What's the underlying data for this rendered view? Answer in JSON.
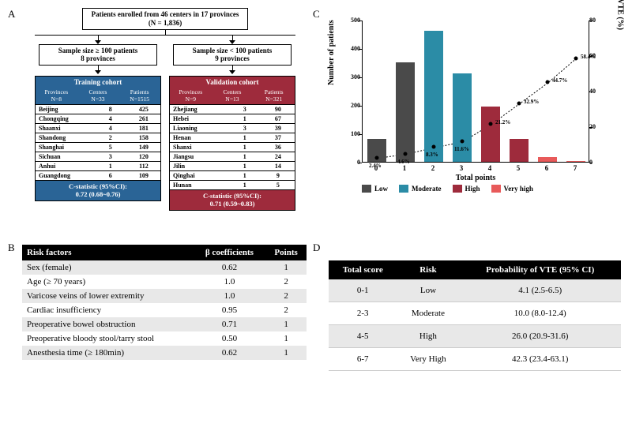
{
  "labels": {
    "A": "A",
    "B": "B",
    "C": "C",
    "D": "D"
  },
  "A": {
    "root": "Patients enrolled from 46 centers in 17 provinces (N = 1,836)",
    "left_cond": "Sample size ≥ 100 patients\n8 provinces",
    "right_cond": "Sample size < 100 patients\n9 provinces",
    "training": {
      "title": "Training cohort",
      "sub": {
        "prov_lab": "Provinces",
        "prov_n": "N=8",
        "cent_lab": "Centers",
        "cent_n": "N=33",
        "pat_lab": "Patients",
        "pat_n": "N=1515"
      },
      "rows": [
        [
          "Beijing",
          "8",
          "425"
        ],
        [
          "Chongqing",
          "4",
          "261"
        ],
        [
          "Shaanxi",
          "4",
          "181"
        ],
        [
          "Shandong",
          "2",
          "158"
        ],
        [
          "Shanghai",
          "5",
          "149"
        ],
        [
          "Sichuan",
          "3",
          "120"
        ],
        [
          "Anhui",
          "1",
          "112"
        ],
        [
          "Guangdong",
          "6",
          "109"
        ]
      ],
      "cstat_lab": "C-statistic (95%CI):",
      "cstat_val": "0.72 (0.68~0.76)",
      "color": "#2a6496"
    },
    "validation": {
      "title": "Validation cohort",
      "sub": {
        "prov_lab": "Provinces",
        "prov_n": "N=9",
        "cent_lab": "Centers",
        "cent_n": "N=13",
        "pat_lab": "Patients",
        "pat_n": "N=321"
      },
      "rows": [
        [
          "Zhejiang",
          "3",
          "90"
        ],
        [
          "Hebei",
          "1",
          "67"
        ],
        [
          "Liaoning",
          "3",
          "39"
        ],
        [
          "Henan",
          "1",
          "37"
        ],
        [
          "Shanxi",
          "1",
          "36"
        ],
        [
          "Jiangsu",
          "1",
          "24"
        ],
        [
          "Jilin",
          "1",
          "14"
        ],
        [
          "Qinghai",
          "1",
          "9"
        ],
        [
          "Hunan",
          "1",
          "5"
        ]
      ],
      "cstat_lab": "C-statistic (95%CI):",
      "cstat_val": "0.71 (0.59~0.83)",
      "color": "#9e2b3c"
    }
  },
  "B": {
    "headers": [
      "Risk factors",
      "β coefficients",
      "Points"
    ],
    "rows": [
      [
        "Sex (female)",
        "0.62",
        "1"
      ],
      [
        "Age (≥ 70 years)",
        "1.0",
        "2"
      ],
      [
        "Varicose veins of lower extremity",
        "1.0",
        "2"
      ],
      [
        "Cardiac insufficiency",
        "0.95",
        "2"
      ],
      [
        "Preoperative bowel obstruction",
        "0.71",
        "1"
      ],
      [
        "Preoperative bloody stool/tarry stool",
        "0.50",
        "1"
      ],
      [
        "Anesthesia time (≥ 180min)",
        "0.62",
        "1"
      ]
    ]
  },
  "C": {
    "type": "bar+line",
    "x_label": "Total points",
    "y_label_left": "Number of patients",
    "y_label_right": "Risk of VTE (%)",
    "x_categories": [
      "0",
      "1",
      "2",
      "3",
      "4",
      "5",
      "6",
      "7"
    ],
    "y_left_max": 500,
    "y_left_ticks": [
      0,
      100,
      200,
      300,
      400,
      500
    ],
    "y_right_max": 80,
    "y_right_ticks": [
      0,
      20,
      40,
      60,
      80
    ],
    "bars": [
      {
        "x": "0",
        "count": 80,
        "group": "Low"
      },
      {
        "x": "1",
        "count": 350,
        "group": "Low"
      },
      {
        "x": "2",
        "count": 460,
        "group": "Moderate"
      },
      {
        "x": "3",
        "count": 310,
        "group": "Moderate"
      },
      {
        "x": "4",
        "count": 195,
        "group": "High"
      },
      {
        "x": "5",
        "count": 80,
        "group": "High"
      },
      {
        "x": "6",
        "count": 18,
        "group": "Very high"
      },
      {
        "x": "7",
        "count": 4,
        "group": "Very high"
      }
    ],
    "line_pct": [
      {
        "x": "0",
        "pct": 2.4,
        "label": "2.4%"
      },
      {
        "x": "1",
        "pct": 4.6,
        "label": "4.6%"
      },
      {
        "x": "2",
        "pct": 8.3,
        "label": "8.3%"
      },
      {
        "x": "3",
        "pct": 11.6,
        "label": "11.6%"
      },
      {
        "x": "4",
        "pct": 21.2,
        "label": "21.2%"
      },
      {
        "x": "5",
        "pct": 32.9,
        "label": "32.9%"
      },
      {
        "x": "6",
        "pct": 44.7,
        "label": "44.7%"
      },
      {
        "x": "7",
        "pct": 58.4,
        "label": "58.4%"
      }
    ],
    "colors": {
      "Low": "#4a4a4a",
      "Moderate": "#2b8ca6",
      "High": "#9e2b3c",
      "Very high": "#e85a5a"
    },
    "legend": [
      "Low",
      "Moderate",
      "High",
      "Very high"
    ],
    "background_color": "#ffffff"
  },
  "D": {
    "headers": [
      "Total score",
      "Risk",
      "Probability of VTE (95% CI)"
    ],
    "rows": [
      [
        "0-1",
        "Low",
        "4.1 (2.5-6.5)"
      ],
      [
        "2-3",
        "Moderate",
        "10.0 (8.0-12.4)"
      ],
      [
        "4-5",
        "High",
        "26.0 (20.9-31.6)"
      ],
      [
        "6-7",
        "Very High",
        "42.3 (23.4-63.1)"
      ]
    ]
  }
}
